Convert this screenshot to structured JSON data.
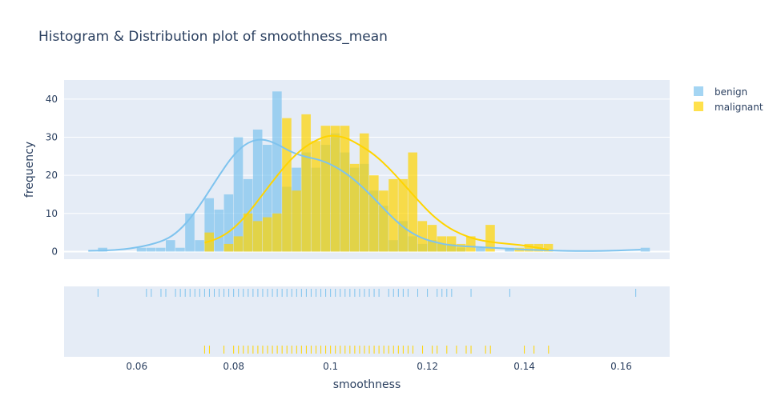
{
  "chart_data": {
    "type": "histogram",
    "title": "Histogram & Distribution plot of smoothness_mean",
    "xlabel": "smoothness",
    "ylabel": "frequency",
    "xlim": [
      0.045,
      0.17
    ],
    "ylim": [
      -2,
      45
    ],
    "x_ticks": [
      0.06,
      0.08,
      0.1,
      0.12,
      0.14,
      0.16
    ],
    "x_tick_labels": [
      "0.06",
      "0.08",
      "0.1",
      "0.12",
      "0.14",
      "0.16"
    ],
    "y_ticks": [
      0,
      10,
      20,
      30,
      40
    ],
    "legend_position": "top-right",
    "bin_width": 0.002,
    "series": [
      {
        "name": "benign",
        "color": "#7ec3ee",
        "bins": [
          {
            "x": 0.052,
            "v": 1
          },
          {
            "x": 0.06,
            "v": 1
          },
          {
            "x": 0.062,
            "v": 1
          },
          {
            "x": 0.064,
            "v": 1
          },
          {
            "x": 0.066,
            "v": 3
          },
          {
            "x": 0.068,
            "v": 1
          },
          {
            "x": 0.07,
            "v": 10
          },
          {
            "x": 0.072,
            "v": 3
          },
          {
            "x": 0.074,
            "v": 14
          },
          {
            "x": 0.076,
            "v": 11
          },
          {
            "x": 0.078,
            "v": 15
          },
          {
            "x": 0.08,
            "v": 30
          },
          {
            "x": 0.082,
            "v": 19
          },
          {
            "x": 0.084,
            "v": 32
          },
          {
            "x": 0.086,
            "v": 28
          },
          {
            "x": 0.088,
            "v": 42
          },
          {
            "x": 0.09,
            "v": 17
          },
          {
            "x": 0.092,
            "v": 22
          },
          {
            "x": 0.094,
            "v": 26
          },
          {
            "x": 0.096,
            "v": 22
          },
          {
            "x": 0.098,
            "v": 28
          },
          {
            "x": 0.1,
            "v": 31
          },
          {
            "x": 0.102,
            "v": 26
          },
          {
            "x": 0.104,
            "v": 22
          },
          {
            "x": 0.106,
            "v": 23
          },
          {
            "x": 0.108,
            "v": 16
          },
          {
            "x": 0.11,
            "v": 12
          },
          {
            "x": 0.112,
            "v": 3
          },
          {
            "x": 0.114,
            "v": 8
          },
          {
            "x": 0.116,
            "v": 4
          },
          {
            "x": 0.118,
            "v": 2
          },
          {
            "x": 0.12,
            "v": 3
          },
          {
            "x": 0.122,
            "v": 2
          },
          {
            "x": 0.124,
            "v": 2
          },
          {
            "x": 0.126,
            "v": 1
          },
          {
            "x": 0.13,
            "v": 1
          },
          {
            "x": 0.136,
            "v": 1
          },
          {
            "x": 0.164,
            "v": 1
          }
        ],
        "kde": [
          [
            0.05,
            0.2
          ],
          [
            0.055,
            0.3
          ],
          [
            0.06,
            1.0
          ],
          [
            0.065,
            2.5
          ],
          [
            0.068,
            4.6
          ],
          [
            0.071,
            8.5
          ],
          [
            0.074,
            14
          ],
          [
            0.077,
            20
          ],
          [
            0.08,
            25.5
          ],
          [
            0.083,
            28.8
          ],
          [
            0.086,
            29.6
          ],
          [
            0.089,
            28.2
          ],
          [
            0.092,
            26.0
          ],
          [
            0.095,
            24.8
          ],
          [
            0.098,
            24.0
          ],
          [
            0.101,
            22.3
          ],
          [
            0.104,
            19.8
          ],
          [
            0.107,
            16.5
          ],
          [
            0.11,
            12.6
          ],
          [
            0.113,
            8.6
          ],
          [
            0.116,
            5.4
          ],
          [
            0.119,
            3.4
          ],
          [
            0.122,
            2.3
          ],
          [
            0.125,
            1.6
          ],
          [
            0.13,
            1.2
          ],
          [
            0.135,
            0.9
          ],
          [
            0.14,
            0.5
          ],
          [
            0.15,
            0.1
          ],
          [
            0.158,
            0.2
          ],
          [
            0.164,
            0.5
          ]
        ],
        "rug": [
          0.052,
          0.062,
          0.063,
          0.065,
          0.066,
          0.068,
          0.069,
          0.07,
          0.071,
          0.072,
          0.073,
          0.074,
          0.075,
          0.076,
          0.077,
          0.078,
          0.079,
          0.08,
          0.081,
          0.082,
          0.083,
          0.084,
          0.085,
          0.086,
          0.087,
          0.088,
          0.089,
          0.09,
          0.091,
          0.092,
          0.093,
          0.094,
          0.095,
          0.096,
          0.097,
          0.098,
          0.099,
          0.1,
          0.101,
          0.102,
          0.103,
          0.104,
          0.105,
          0.106,
          0.107,
          0.108,
          0.109,
          0.11,
          0.112,
          0.113,
          0.114,
          0.115,
          0.116,
          0.118,
          0.12,
          0.122,
          0.123,
          0.124,
          0.125,
          0.129,
          0.137,
          0.163
        ]
      },
      {
        "name": "malignant",
        "color": "#ffd400",
        "bins": [
          {
            "x": 0.074,
            "v": 5
          },
          {
            "x": 0.078,
            "v": 2
          },
          {
            "x": 0.08,
            "v": 4
          },
          {
            "x": 0.082,
            "v": 10
          },
          {
            "x": 0.084,
            "v": 8
          },
          {
            "x": 0.086,
            "v": 9
          },
          {
            "x": 0.088,
            "v": 10
          },
          {
            "x": 0.09,
            "v": 35
          },
          {
            "x": 0.092,
            "v": 16
          },
          {
            "x": 0.094,
            "v": 36
          },
          {
            "x": 0.096,
            "v": 29
          },
          {
            "x": 0.098,
            "v": 33
          },
          {
            "x": 0.1,
            "v": 33
          },
          {
            "x": 0.102,
            "v": 33
          },
          {
            "x": 0.104,
            "v": 23
          },
          {
            "x": 0.106,
            "v": 31
          },
          {
            "x": 0.108,
            "v": 20
          },
          {
            "x": 0.11,
            "v": 16
          },
          {
            "x": 0.112,
            "v": 19
          },
          {
            "x": 0.114,
            "v": 19
          },
          {
            "x": 0.116,
            "v": 26
          },
          {
            "x": 0.118,
            "v": 8
          },
          {
            "x": 0.12,
            "v": 7
          },
          {
            "x": 0.122,
            "v": 4
          },
          {
            "x": 0.124,
            "v": 4
          },
          {
            "x": 0.126,
            "v": 2
          },
          {
            "x": 0.128,
            "v": 4
          },
          {
            "x": 0.132,
            "v": 7
          },
          {
            "x": 0.138,
            "v": 1
          },
          {
            "x": 0.14,
            "v": 2
          },
          {
            "x": 0.142,
            "v": 2
          },
          {
            "x": 0.144,
            "v": 2
          }
        ],
        "kde": [
          [
            0.074,
            2.3
          ],
          [
            0.077,
            3.5
          ],
          [
            0.08,
            6.0
          ],
          [
            0.083,
            10
          ],
          [
            0.086,
            15
          ],
          [
            0.089,
            20
          ],
          [
            0.092,
            24.5
          ],
          [
            0.095,
            27.8
          ],
          [
            0.098,
            29.8
          ],
          [
            0.1,
            30.5
          ],
          [
            0.103,
            30.0
          ],
          [
            0.106,
            28.0
          ],
          [
            0.109,
            25.5
          ],
          [
            0.112,
            22.0
          ],
          [
            0.115,
            17.8
          ],
          [
            0.118,
            13.5
          ],
          [
            0.121,
            9.5
          ],
          [
            0.124,
            6.5
          ],
          [
            0.127,
            4.5
          ],
          [
            0.13,
            3.2
          ],
          [
            0.133,
            2.5
          ],
          [
            0.136,
            2.1
          ],
          [
            0.14,
            1.6
          ],
          [
            0.145,
            0.5
          ]
        ],
        "rug": [
          0.074,
          0.075,
          0.078,
          0.08,
          0.081,
          0.082,
          0.083,
          0.084,
          0.085,
          0.086,
          0.087,
          0.088,
          0.089,
          0.09,
          0.091,
          0.092,
          0.093,
          0.094,
          0.095,
          0.096,
          0.097,
          0.098,
          0.099,
          0.1,
          0.101,
          0.102,
          0.103,
          0.104,
          0.105,
          0.106,
          0.107,
          0.108,
          0.109,
          0.11,
          0.111,
          0.112,
          0.113,
          0.114,
          0.115,
          0.116,
          0.117,
          0.119,
          0.121,
          0.122,
          0.124,
          0.126,
          0.128,
          0.129,
          0.132,
          0.133,
          0.14,
          0.142,
          0.145
        ]
      }
    ]
  }
}
